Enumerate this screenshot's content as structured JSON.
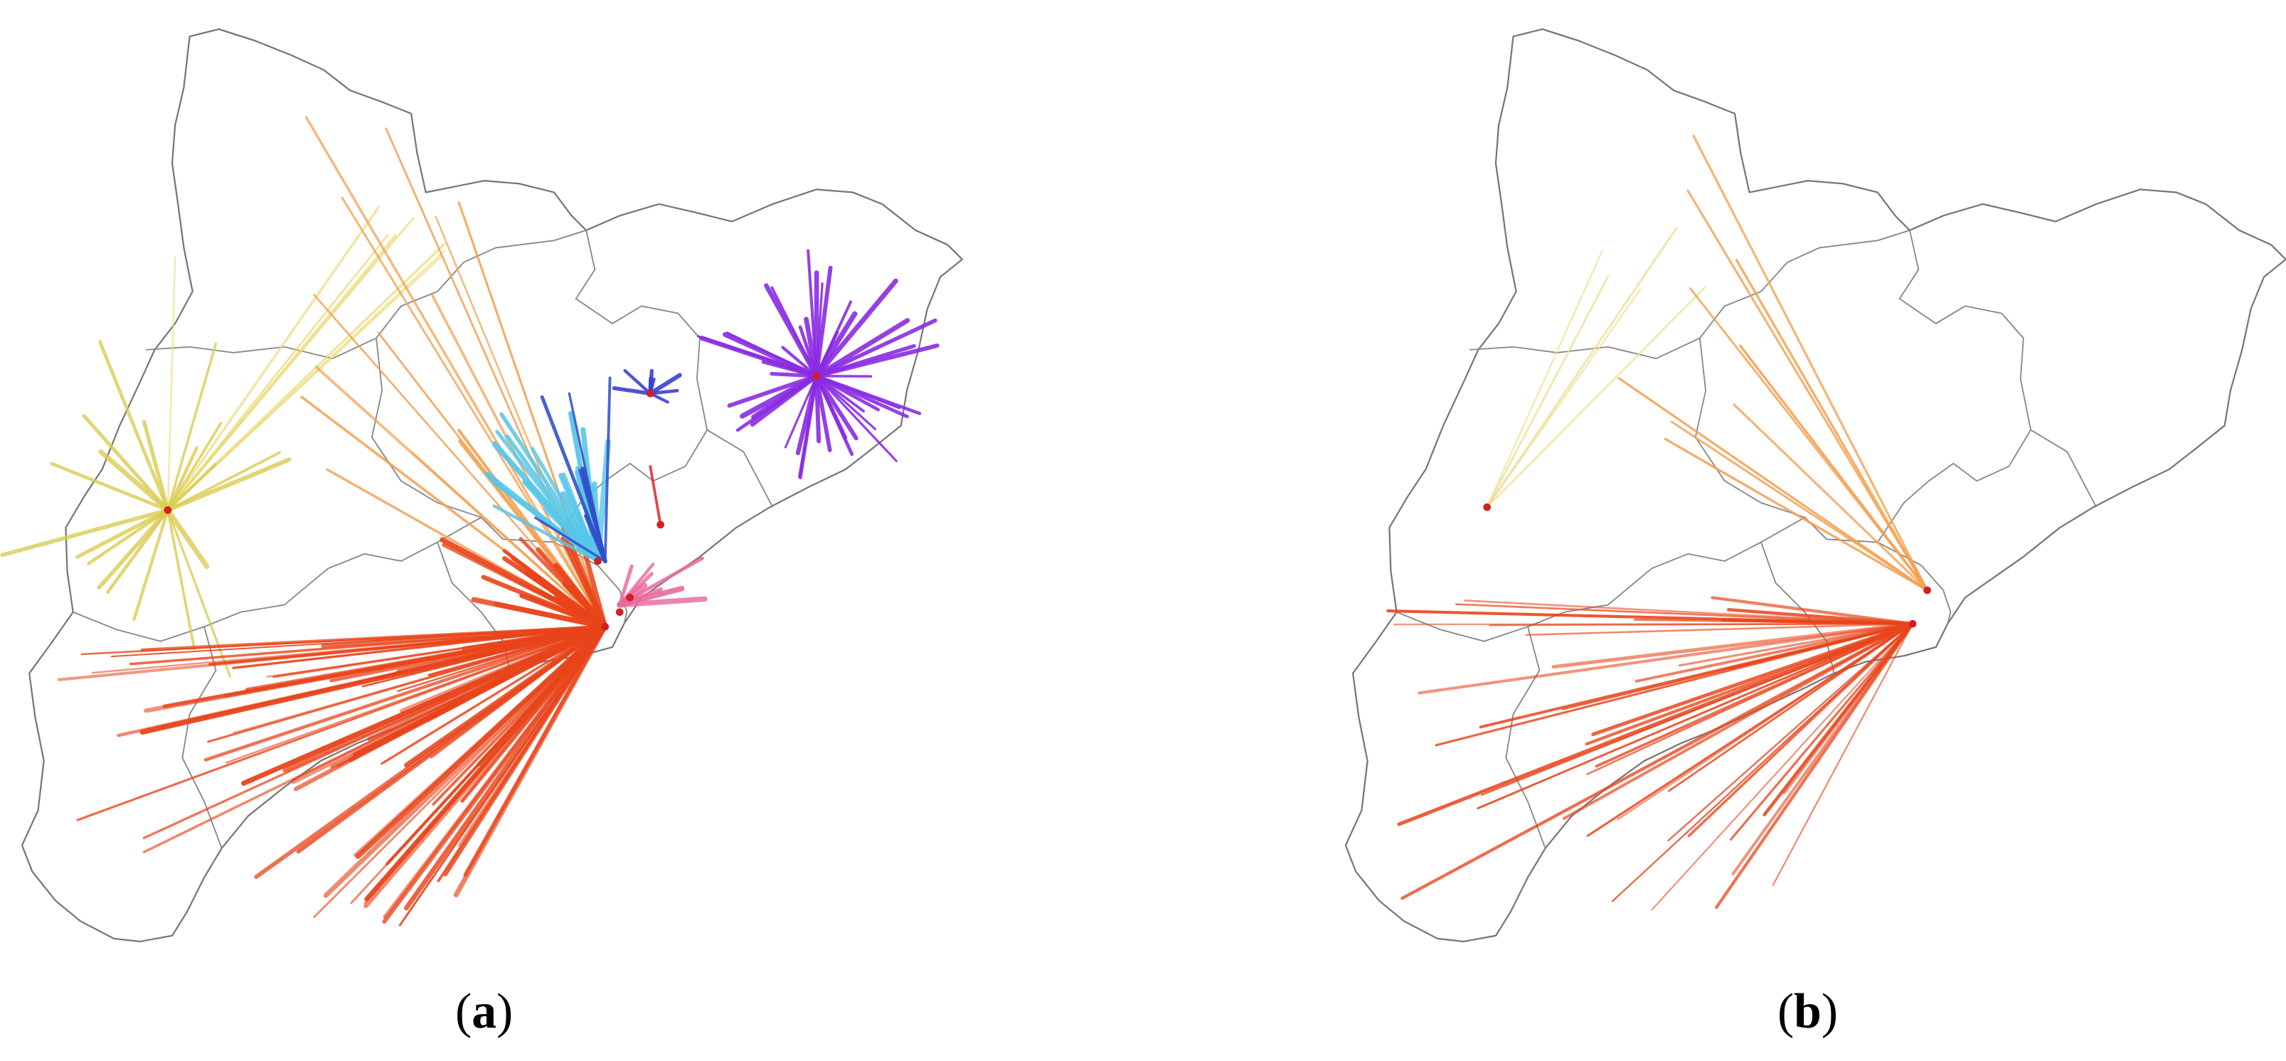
{
  "panels": [
    {
      "caption": [
        "(",
        "a",
        ")"
      ]
    },
    {
      "caption": [
        "(",
        "b",
        ")"
      ]
    }
  ]
}
